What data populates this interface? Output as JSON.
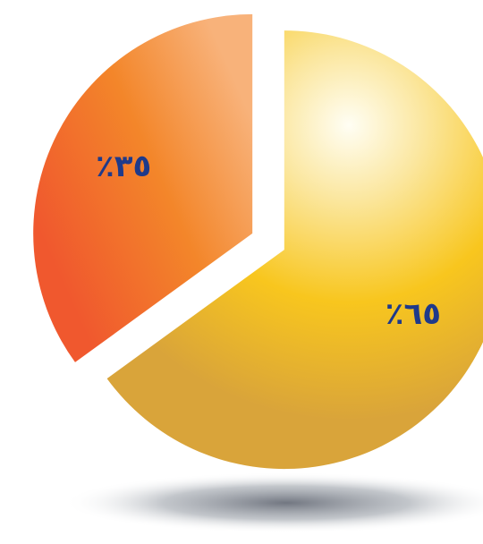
{
  "chart_data": {
    "type": "pie",
    "title": "",
    "slices": [
      {
        "label": "٪٦٥",
        "value": 65,
        "color": "#f7c21c"
      },
      {
        "label": "٪٣٥",
        "value": 35,
        "color": "#f06b2a"
      }
    ],
    "legend": "none",
    "style": "3d-gradient, exploded"
  }
}
